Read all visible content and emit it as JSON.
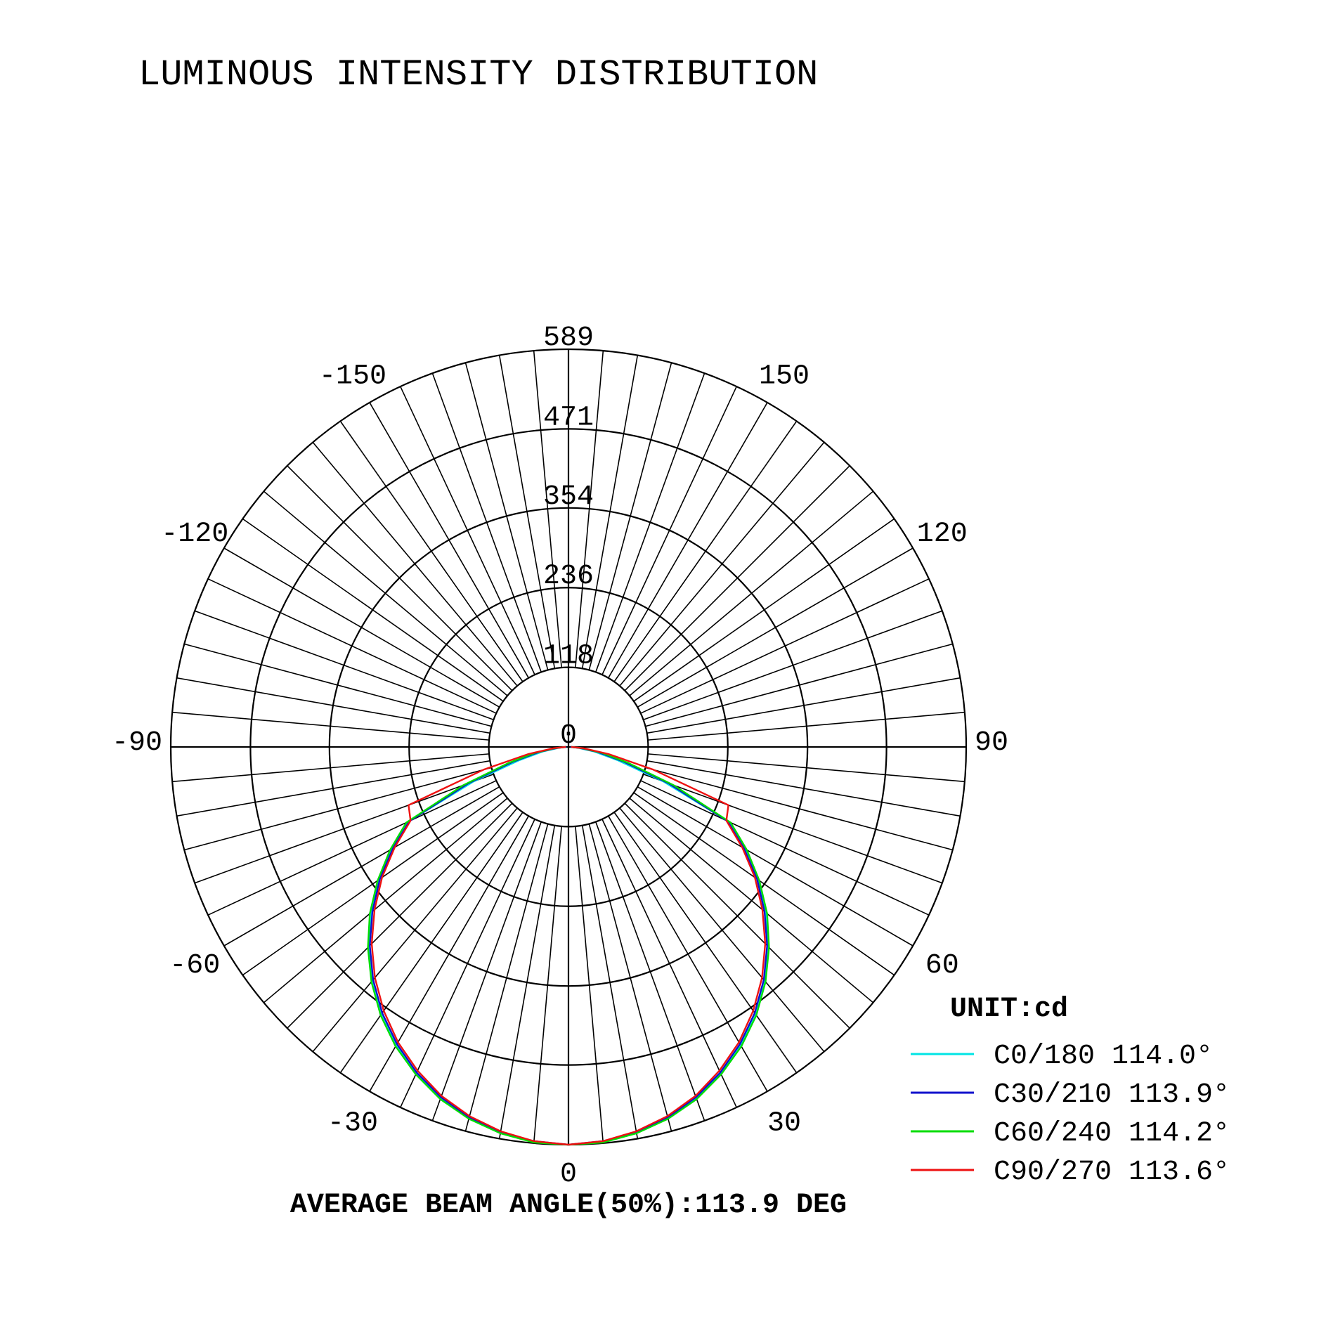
{
  "chart_data": {
    "type": "polar",
    "title": "LUMINOUS INTENSITY DISTRIBUTION",
    "unit_label": "UNIT:cd",
    "footer": "AVERAGE BEAM ANGLE(50%):113.9 DEG",
    "r_max": 589,
    "radial_ticks": [
      "0",
      "118",
      "236",
      "354",
      "471",
      "589"
    ],
    "radial_values": [
      0,
      118,
      236,
      354,
      471,
      589
    ],
    "angle_labels": [
      {
        "angle": 0,
        "text": "0"
      },
      {
        "angle": 30,
        "text": "30"
      },
      {
        "angle": -30,
        "text": "-30"
      },
      {
        "angle": 60,
        "text": "60"
      },
      {
        "angle": -60,
        "text": "-60"
      },
      {
        "angle": 90,
        "text": "90"
      },
      {
        "angle": -90,
        "text": "-90"
      },
      {
        "angle": 120,
        "text": "120"
      },
      {
        "angle": -120,
        "text": "-120"
      },
      {
        "angle": 150,
        "text": "150"
      },
      {
        "angle": -150,
        "text": "-150"
      }
    ],
    "grid": true,
    "legend_position": "bottom-right",
    "angles": [
      0,
      5,
      10,
      15,
      20,
      25,
      30,
      35,
      40,
      45,
      50,
      55,
      60,
      65,
      70,
      75,
      80,
      85,
      90
    ],
    "series": [
      {
        "name": "C0/180 114.0°",
        "color": "#00e5e5",
        "values": [
          589,
          587,
          580,
          569,
          553,
          533,
          510,
          482,
          451,
          417,
          381,
          342,
          302,
          262,
          150,
          75,
          38,
          14,
          3
        ]
      },
      {
        "name": "C30/210 113.9°",
        "color": "#1010cc",
        "values": [
          589,
          586,
          579,
          568,
          552,
          532,
          508,
          481,
          450,
          416,
          379,
          341,
          300,
          260,
          158,
          85,
          45,
          17,
          3
        ]
      },
      {
        "name": "C60/240 114.2°",
        "color": "#00dd00",
        "values": [
          589,
          588,
          581,
          570,
          555,
          535,
          512,
          485,
          454,
          420,
          384,
          345,
          305,
          265,
          166,
          92,
          50,
          20,
          4
        ]
      },
      {
        "name": "C90/270 113.6°",
        "color": "#ee1111",
        "values": [
          589,
          586,
          578,
          566,
          550,
          529,
          505,
          477,
          446,
          412,
          375,
          337,
          297,
          258,
          252,
          130,
          60,
          22,
          4
        ]
      }
    ]
  }
}
